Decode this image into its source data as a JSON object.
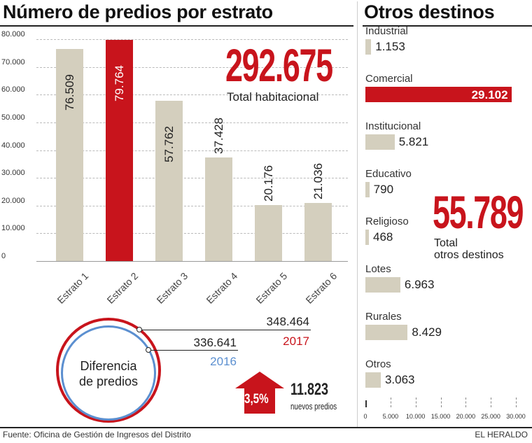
{
  "chart_data": [
    {
      "type": "bar",
      "title": "Número de predios por estrato",
      "categories": [
        "Estrato 1",
        "Estrato 2",
        "Estrato 3",
        "Estrato 4",
        "Estrato 5",
        "Estrato 6"
      ],
      "values": [
        76509,
        79764,
        57762,
        37428,
        20176,
        21036
      ],
      "value_labels": [
        "76.509",
        "79.764",
        "57.762",
        "37.428",
        "20.176",
        "21.036"
      ],
      "highlight": "Estrato 2",
      "ylim": [
        0,
        80000
      ],
      "yticks": [
        "0",
        "10.000",
        "20.000",
        "30.000",
        "40.000",
        "50.000",
        "60.000",
        "70.000",
        "80.000"
      ],
      "annotation": {
        "value": "292.675",
        "label": "Total habitacional"
      },
      "colors": {
        "bar": "#d4cfbe",
        "highlight": "#c8141c"
      }
    },
    {
      "type": "bar",
      "orientation": "horizontal",
      "title": "Otros destinos",
      "categories": [
        "Industrial",
        "Comercial",
        "Institucional",
        "Educativo",
        "Religioso",
        "Lotes",
        "Rurales",
        "Otros"
      ],
      "values": [
        1153,
        29102,
        5821,
        790,
        468,
        6963,
        8429,
        3063
      ],
      "value_labels": [
        "1.153",
        "29.102",
        "5.821",
        "790",
        "468",
        "6.963",
        "8.429",
        "3.063"
      ],
      "highlight": "Comercial",
      "xlim": [
        0,
        30000
      ],
      "xticks": [
        "0",
        "5.000",
        "10.000",
        "15.000",
        "20.000",
        "25.000",
        "30.000"
      ],
      "annotation": {
        "value": "55.789",
        "label_line1": "Total",
        "label_line2": "otros destinos"
      }
    }
  ],
  "difference": {
    "circle_label_1": "Diferencia",
    "circle_label_2": "de predios",
    "value_2017": "348.464",
    "year_2017": "2017",
    "value_2016": "336.641",
    "year_2016": "2016",
    "percent": "3,5%",
    "new_count": "11.823",
    "new_label": "nuevos predios",
    "colors": {
      "2017": "#c8141c",
      "2016": "#5b8fd0"
    }
  },
  "footer": {
    "source": "Fuente: Oficina de Gestión de Ingresos del Distrito",
    "brand": "EL HERALDO"
  }
}
